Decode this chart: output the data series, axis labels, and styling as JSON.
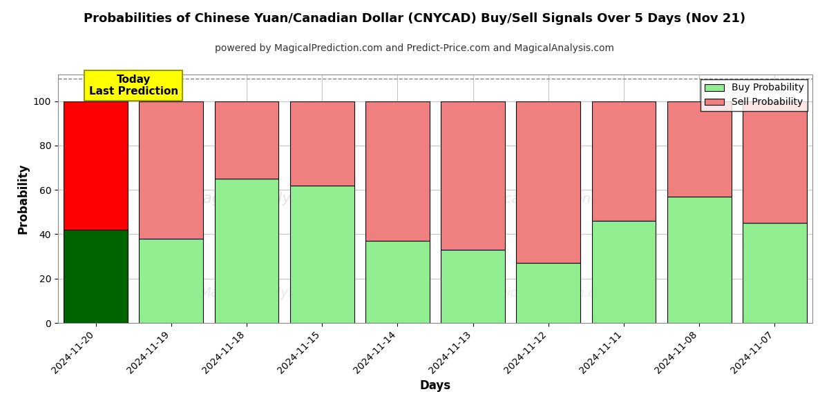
{
  "title": "Probabilities of Chinese Yuan/Canadian Dollar (CNYCAD) Buy/Sell Signals Over 5 Days (Nov 21)",
  "subtitle": "powered by MagicalPrediction.com and Predict-Price.com and MagicalAnalysis.com",
  "xlabel": "Days",
  "ylabel": "Probability",
  "categories": [
    "2024-11-20",
    "2024-11-19",
    "2024-11-18",
    "2024-11-15",
    "2024-11-14",
    "2024-11-13",
    "2024-11-12",
    "2024-11-11",
    "2024-11-08",
    "2024-11-07"
  ],
  "buy_values": [
    42,
    38,
    65,
    62,
    37,
    33,
    27,
    46,
    57,
    45
  ],
  "sell_values": [
    58,
    62,
    35,
    38,
    63,
    67,
    73,
    54,
    43,
    55
  ],
  "today_buy_color": "#006400",
  "today_sell_color": "#FF0000",
  "buy_color": "#90EE90",
  "sell_color": "#F08080",
  "bar_edge_color": "#000000",
  "today_annotation_text": "Today\nLast Prediction",
  "today_annotation_bg": "#FFFF00",
  "legend_buy_label": "Buy Probability",
  "legend_sell_label": "Sell Probability",
  "ylim": [
    0,
    112
  ],
  "yticks": [
    0,
    20,
    40,
    60,
    80,
    100
  ],
  "dashed_line_y": 110,
  "bg_color": "#ffffff",
  "grid_color": "#aaaaaa",
  "title_fontsize": 13,
  "subtitle_fontsize": 10,
  "label_fontsize": 12,
  "tick_fontsize": 10,
  "bar_width": 0.85
}
